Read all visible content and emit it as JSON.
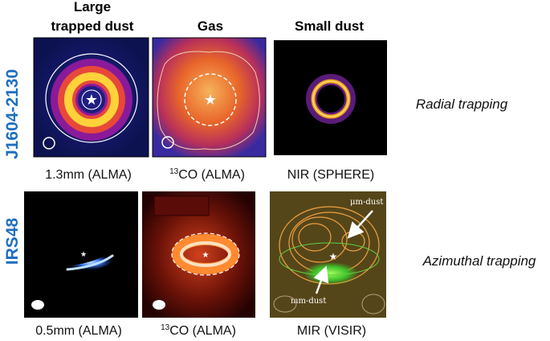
{
  "columns": [
    {
      "lines": [
        "Large",
        "trapped dust"
      ]
    },
    {
      "lines": [
        "Gas"
      ]
    },
    {
      "lines": [
        "Small dust"
      ]
    }
  ],
  "rows": [
    {
      "label": "J1604-2130",
      "trapping": "Radial trapping",
      "captions": [
        {
          "text": "1.3mm (ALMA)"
        },
        {
          "sup": "13",
          "text": "CO (ALMA)"
        },
        {
          "text": "NIR (SPHERE)"
        }
      ]
    },
    {
      "label": "IRS48",
      "trapping": "Azimuthal trapping",
      "captions": [
        {
          "text": "0.5mm (ALMA)"
        },
        {
          "sup": "13",
          "text": "CO (ALMA)"
        },
        {
          "text": "MIR (VISIR)"
        }
      ],
      "annotations": [
        "μm-dust",
        "mm-dust"
      ]
    }
  ]
}
